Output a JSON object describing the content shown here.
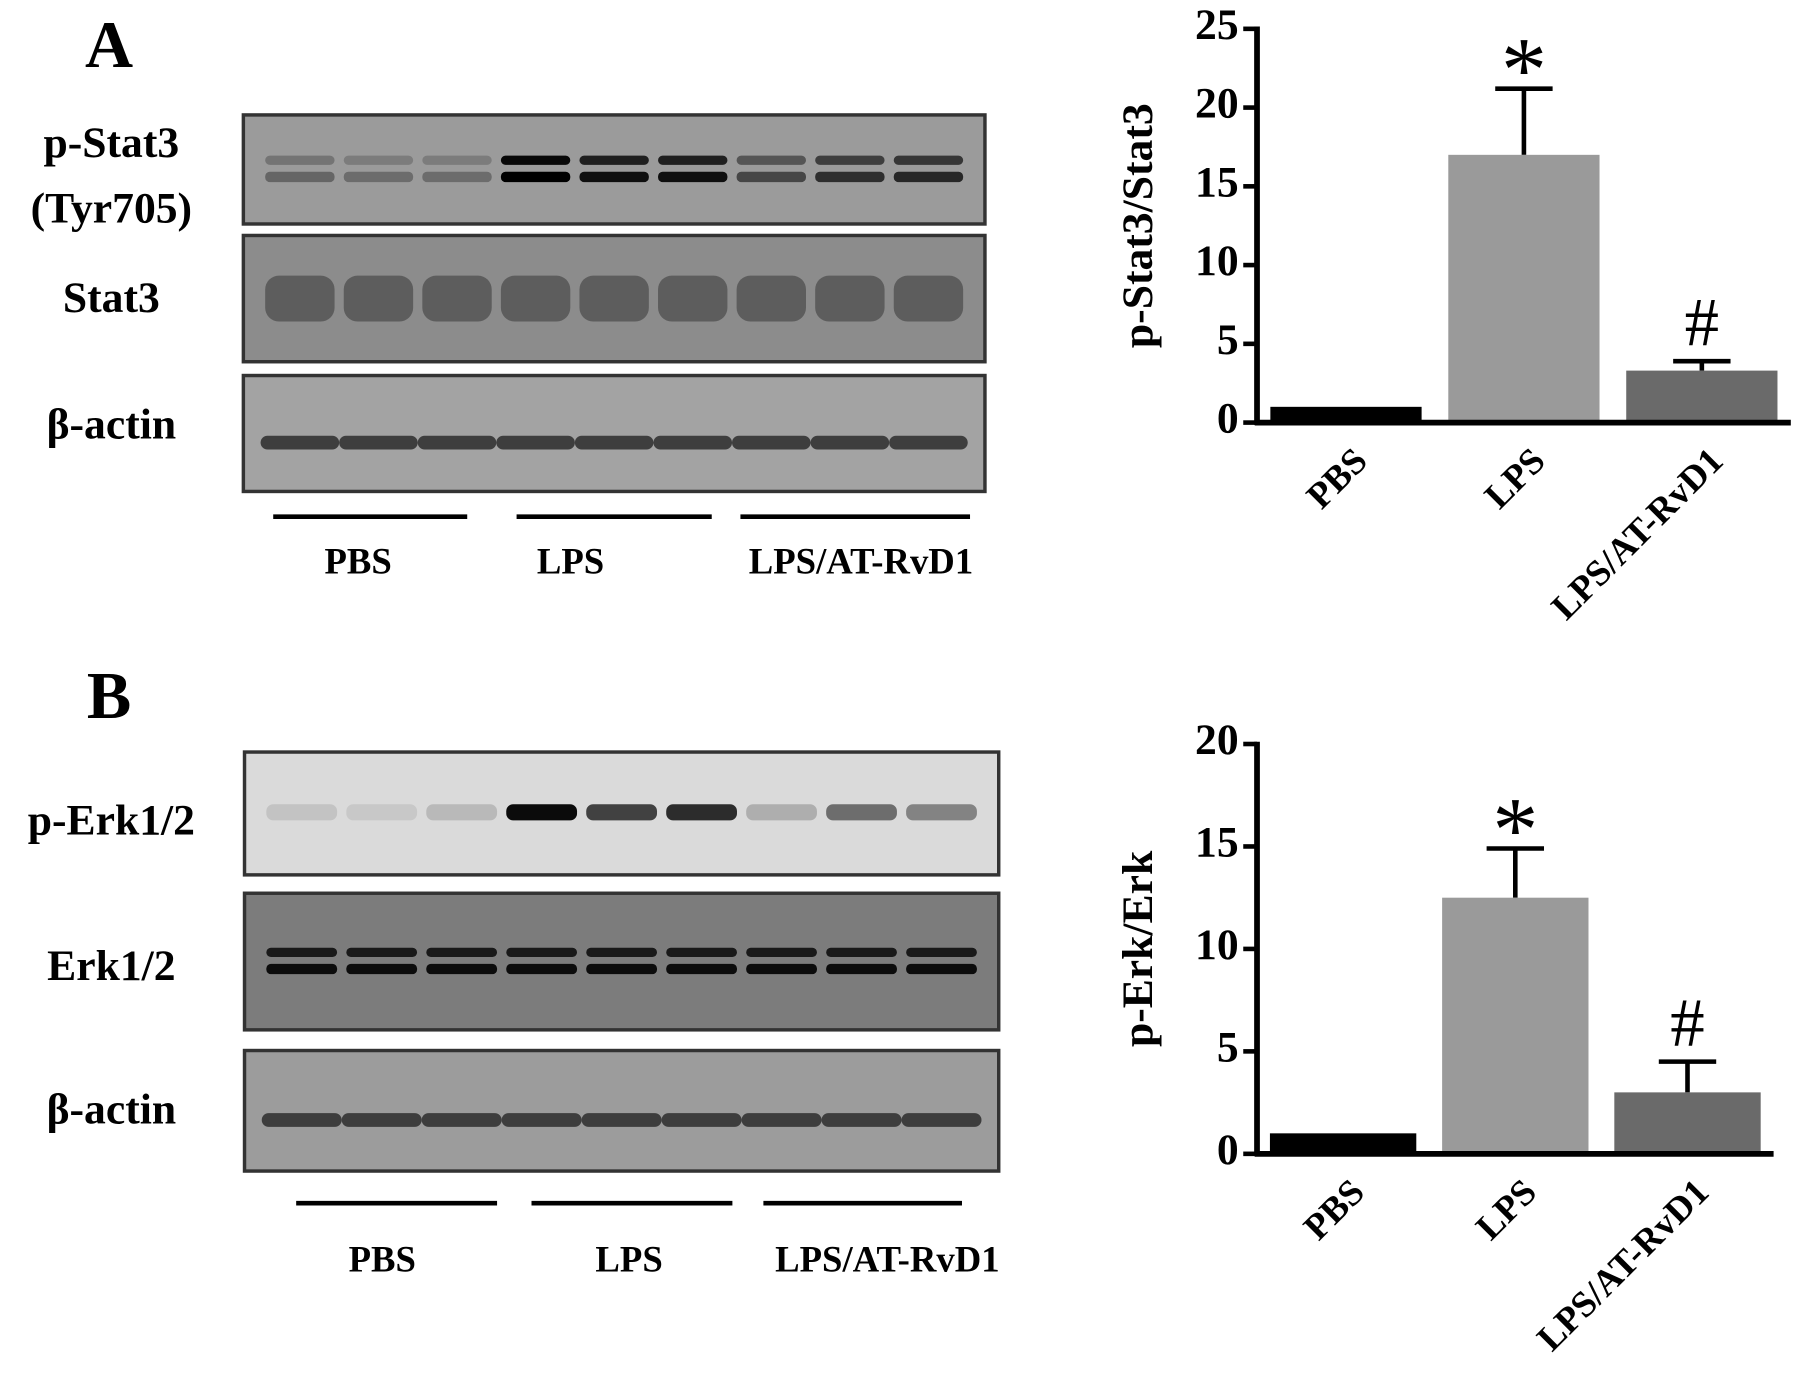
{
  "chart_data": [
    {
      "type": "bar",
      "ylabel": "p-Stat3/Stat3",
      "categories": [
        "PBS",
        "LPS",
        "LPS/AT-RvD1"
      ],
      "values": [
        1,
        17,
        3.3
      ],
      "errors": [
        null,
        4.2,
        0.6
      ],
      "annotations": [
        null,
        "*",
        "#"
      ],
      "colors": [
        "#000000",
        "#9a9a9a",
        "#6a6a6a"
      ],
      "ylim": [
        0,
        25
      ],
      "yticks": [
        0,
        5,
        10,
        15,
        20,
        25
      ]
    },
    {
      "type": "bar",
      "ylabel": "p-Erk/Erk",
      "categories": [
        "PBS",
        "LPS",
        "LPS/AT-RvD1"
      ],
      "values": [
        1,
        12.5,
        3
      ],
      "errors": [
        null,
        2.4,
        1.5
      ],
      "annotations": [
        null,
        "*",
        "#"
      ],
      "colors": [
        "#000000",
        "#9a9a9a",
        "#6a6a6a"
      ],
      "ylim": [
        0,
        20
      ],
      "yticks": [
        0,
        5,
        10,
        15,
        20
      ]
    }
  ],
  "blots": [
    {
      "label": "A",
      "rows": [
        [
          "p-Stat3",
          "(Tyr705)"
        ],
        [
          "Stat3"
        ],
        [
          "β-actin"
        ]
      ],
      "groups": [
        "PBS",
        "LPS",
        "LPS/AT-RvD1"
      ]
    },
    {
      "label": "B",
      "rows": [
        [
          "p-Erk1/2"
        ],
        [
          "Erk1/2"
        ],
        [
          "β-actin"
        ]
      ],
      "groups": [
        "PBS",
        "LPS",
        "LPS/AT-RvD1"
      ]
    }
  ]
}
